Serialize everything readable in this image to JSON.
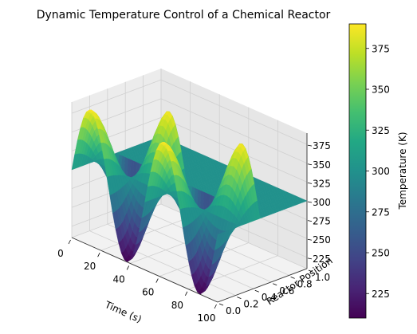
{
  "chart_data": {
    "type": "surface3d",
    "title": "Dynamic Temperature Control of a Chemical Reactor",
    "xlabel": "Time (s)",
    "ylabel": "Reactor Position",
    "zlabel": "",
    "colorbar_label": "Temperature (K)",
    "colormap": "viridis",
    "xlim": [
      0,
      100
    ],
    "ylim": [
      0,
      1
    ],
    "zlim": [
      210,
      390
    ],
    "x_ticks": [
      "0",
      "20",
      "40",
      "60",
      "80",
      "100"
    ],
    "y_ticks": [
      "0.0",
      "0.2",
      "0.4",
      "0.6",
      "0.8",
      "1.0"
    ],
    "z_ticks": [
      "225",
      "250",
      "275",
      "300",
      "325",
      "350",
      "375"
    ],
    "colorbar_ticks": [
      "225",
      "250",
      "275",
      "300",
      "325",
      "350",
      "375"
    ],
    "colorbar_range": [
      210,
      390
    ],
    "grid": true,
    "surface": {
      "equation": "T = 300 + 90*sin(2*pi*t/50)*cos(2*pi*p) for p < 0.5, T = 300 otherwise",
      "baseline": 300,
      "amplitude": 90,
      "time_period": 50,
      "plateau_from_position": 0.5
    }
  }
}
